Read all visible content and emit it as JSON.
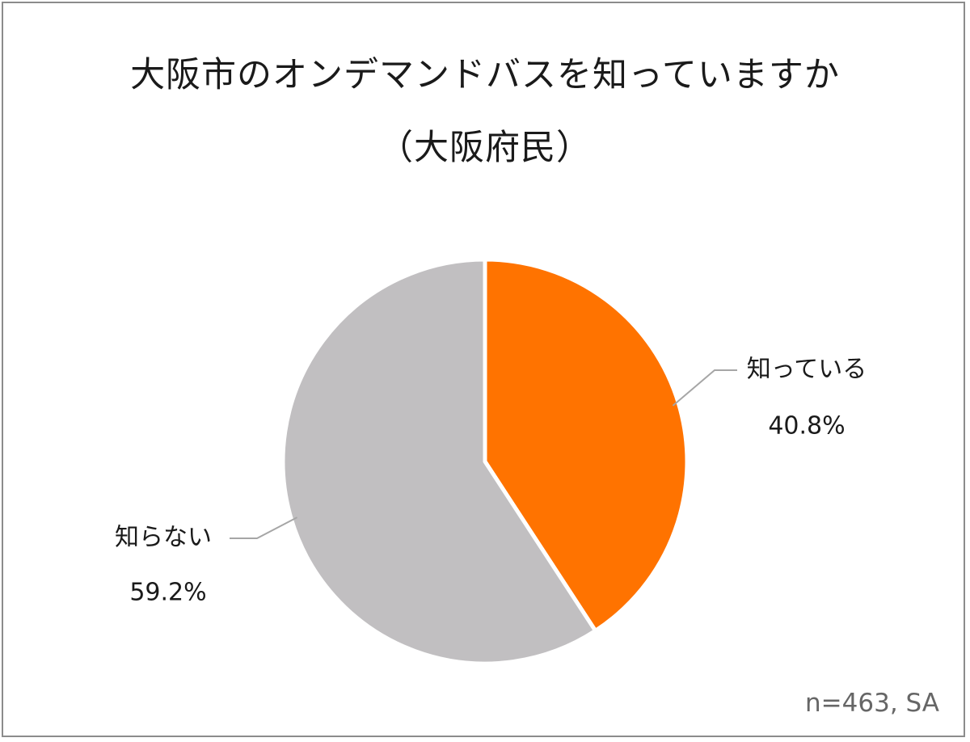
{
  "chart_data": {
    "type": "pie",
    "title": "大阪市のオンデマンドバスを知っていますか",
    "subtitle": "（大阪府民）",
    "slices": [
      {
        "label": "知っている",
        "value": 40.8,
        "value_label": "40.8%",
        "color": "#ff7300"
      },
      {
        "label": "知らない",
        "value": 59.2,
        "value_label": "59.2%",
        "color": "#c1bfc1"
      }
    ],
    "start_angle_deg": 0,
    "direction": "clockwise",
    "note": "n=463, SA"
  }
}
